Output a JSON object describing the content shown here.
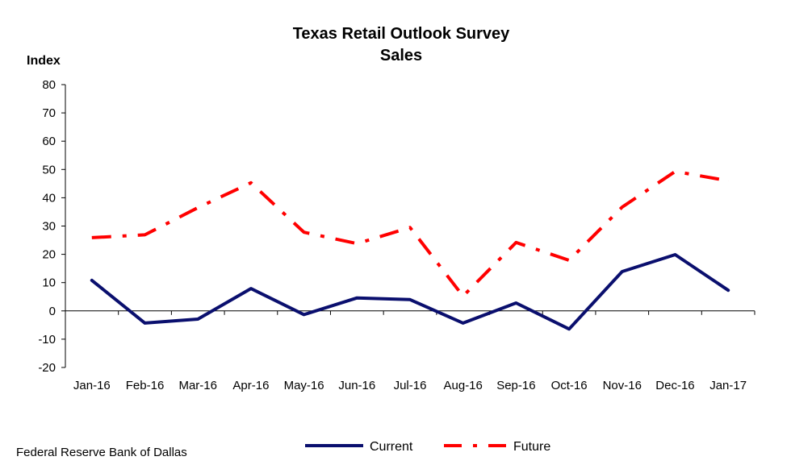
{
  "chart_data": {
    "type": "line",
    "title": "Texas Retail Outlook Survey",
    "subtitle": "Sales",
    "ylabel": "Index",
    "xlabel": "",
    "ylim": [
      -20,
      80
    ],
    "yticks": [
      "80",
      "70",
      "60",
      "50",
      "40",
      "30",
      "20",
      "10",
      "0",
      "-10",
      "-20"
    ],
    "categories": [
      "Jan-16",
      "Feb-16",
      "Mar-16",
      "Apr-16",
      "May-16",
      "Jun-16",
      "Jul-16",
      "Aug-16",
      "Sep-16",
      "Oct-16",
      "Nov-16",
      "Dec-16",
      "Jan-17"
    ],
    "series": [
      {
        "name": "Current",
        "color": "#0a0f6e",
        "style": "solid",
        "values": [
          10.8,
          -4.3,
          -2.9,
          7.9,
          -1.3,
          4.6,
          4.0,
          -4.3,
          2.8,
          -6.4,
          13.9,
          19.9,
          7.3
        ]
      },
      {
        "name": "Future",
        "color": "#ff0000",
        "style": "dash-dot",
        "values": [
          25.9,
          26.9,
          36.5,
          45.3,
          27.8,
          23.8,
          29.5,
          5.2,
          24.2,
          17.9,
          36.7,
          49.3,
          46.0
        ]
      }
    ],
    "grid": false,
    "legend_position": "bottom",
    "source": "Federal Reserve Bank of Dallas"
  }
}
